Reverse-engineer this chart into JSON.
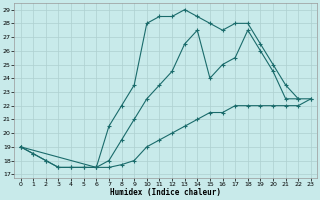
{
  "xlabel": "Humidex (Indice chaleur)",
  "bg_color": "#c8eaea",
  "grid_color": "#aed0d0",
  "line_color": "#1a6b6b",
  "xlim_min": -0.5,
  "xlim_max": 23.5,
  "ylim_min": 16.7,
  "ylim_max": 29.5,
  "yticks": [
    17,
    18,
    19,
    20,
    21,
    22,
    23,
    24,
    25,
    26,
    27,
    28,
    29
  ],
  "xticks": [
    0,
    1,
    2,
    3,
    4,
    5,
    6,
    7,
    8,
    9,
    10,
    11,
    12,
    13,
    14,
    15,
    16,
    17,
    18,
    19,
    20,
    21,
    22,
    23
  ],
  "curve1_x": [
    0,
    1,
    2,
    3,
    4,
    5,
    6,
    7,
    8,
    9,
    10,
    11,
    12,
    13,
    14,
    15,
    16,
    17,
    18,
    19,
    20,
    21,
    22,
    23
  ],
  "curve1_y": [
    19.0,
    18.5,
    18.0,
    17.5,
    17.5,
    17.5,
    17.5,
    17.5,
    17.7,
    18.0,
    19.0,
    19.5,
    20.0,
    20.5,
    21.0,
    21.5,
    21.5,
    22.0,
    22.0,
    22.0,
    22.0,
    22.0,
    22.0,
    22.5
  ],
  "curve2_x": [
    0,
    1,
    2,
    3,
    4,
    5,
    6,
    7,
    8,
    9,
    10,
    11,
    12,
    13,
    14,
    15,
    16,
    17,
    18,
    19,
    20,
    21,
    22
  ],
  "curve2_y": [
    19.0,
    18.5,
    18.0,
    17.5,
    17.5,
    17.5,
    17.5,
    20.5,
    22.0,
    23.5,
    28.0,
    28.5,
    28.5,
    29.0,
    28.5,
    28.0,
    27.5,
    28.0,
    28.0,
    26.5,
    25.0,
    23.5,
    22.5
  ],
  "curve3_x": [
    0,
    6,
    7,
    8,
    9,
    10,
    11,
    12,
    13,
    14,
    15,
    16,
    17,
    18,
    19,
    20,
    21,
    22,
    23
  ],
  "curve3_y": [
    19.0,
    17.5,
    18.0,
    19.5,
    21.0,
    22.5,
    23.5,
    24.5,
    26.5,
    27.5,
    24.0,
    25.0,
    25.5,
    27.5,
    26.0,
    24.5,
    22.5,
    22.5,
    22.5
  ]
}
